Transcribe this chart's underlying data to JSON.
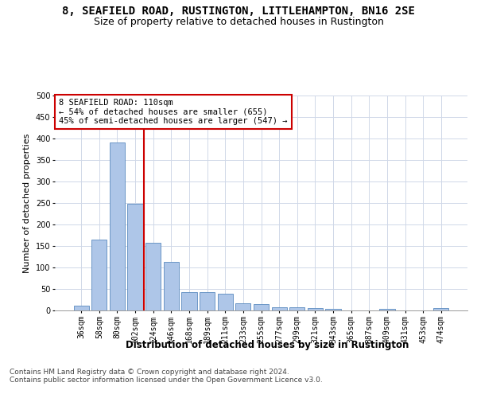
{
  "title1": "8, SEAFIELD ROAD, RUSTINGTON, LITTLEHAMPTON, BN16 2SE",
  "title2": "Size of property relative to detached houses in Rustington",
  "xlabel": "Distribution of detached houses by size in Rustington",
  "ylabel": "Number of detached properties",
  "categories": [
    "36sqm",
    "58sqm",
    "80sqm",
    "102sqm",
    "124sqm",
    "146sqm",
    "168sqm",
    "189sqm",
    "211sqm",
    "233sqm",
    "255sqm",
    "277sqm",
    "299sqm",
    "321sqm",
    "343sqm",
    "365sqm",
    "387sqm",
    "409sqm",
    "431sqm",
    "453sqm",
    "474sqm"
  ],
  "values": [
    11,
    165,
    390,
    248,
    157,
    113,
    42,
    42,
    38,
    17,
    14,
    8,
    7,
    5,
    3,
    0,
    0,
    4,
    0,
    0,
    5
  ],
  "bar_color": "#aec6e8",
  "bar_edge_color": "#5a8abf",
  "vline_x_index": 3,
  "vline_color": "#cc0000",
  "annotation_text": "8 SEAFIELD ROAD: 110sqm\n← 54% of detached houses are smaller (655)\n45% of semi-detached houses are larger (547) →",
  "annotation_box_color": "#ffffff",
  "annotation_box_edge": "#cc0000",
  "grid_color": "#d0d8e8",
  "background_color": "#ffffff",
  "ylim": [
    0,
    500
  ],
  "yticks": [
    0,
    50,
    100,
    150,
    200,
    250,
    300,
    350,
    400,
    450,
    500
  ],
  "footer": "Contains HM Land Registry data © Crown copyright and database right 2024.\nContains public sector information licensed under the Open Government Licence v3.0.",
  "title1_fontsize": 10,
  "title2_fontsize": 9,
  "xlabel_fontsize": 8.5,
  "ylabel_fontsize": 8,
  "tick_fontsize": 7,
  "annotation_fontsize": 7.5,
  "footer_fontsize": 6.5
}
